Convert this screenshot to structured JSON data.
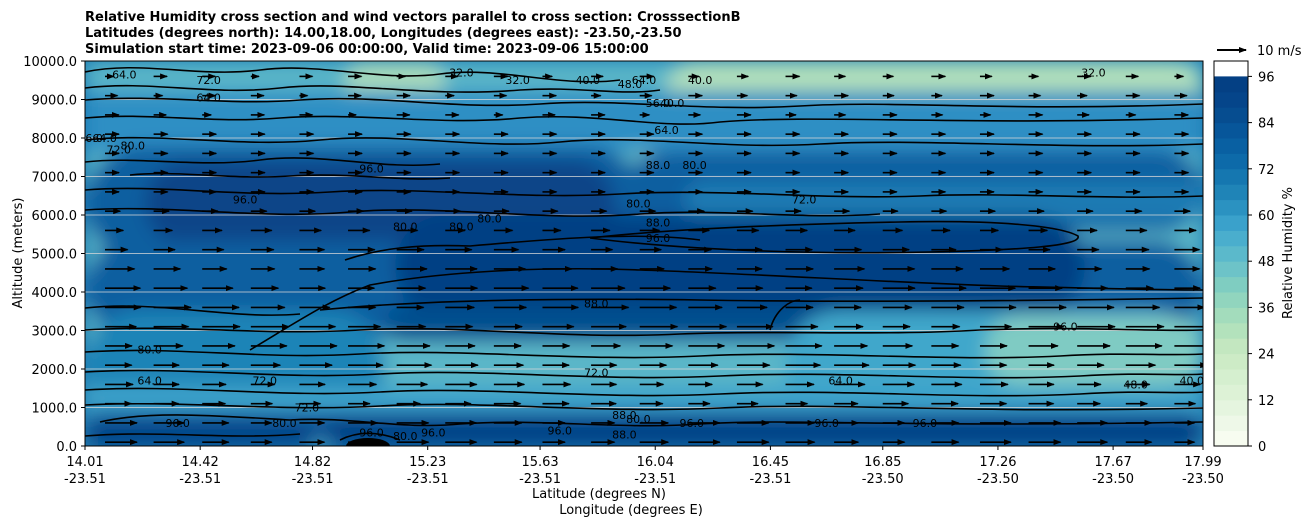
{
  "chart_data": {
    "type": "contour",
    "title_lines": [
      "Relative Humidity cross section and wind vectors parallel to cross section: CrosssectionB",
      "Latitudes (degrees north): 14.00,18.00, Longitudes (degrees east): -23.50,-23.50",
      "Simulation start time: 2023-09-06 00:00:00, Valid time: 2023-09-06 15:00:00"
    ],
    "ylabel": "Altitude (meters)",
    "xlabel_lat": "Latitude (degrees N)",
    "xlabel_lon": "Longitude (degrees E)",
    "ylim": [
      0,
      10000
    ],
    "y_ticks": [
      "0.0",
      "1000.0",
      "2000.0",
      "3000.0",
      "4000.0",
      "5000.0",
      "6000.0",
      "7000.0",
      "8000.0",
      "9000.0",
      "10000.0"
    ],
    "x_ticks_lat": [
      "14.01",
      "14.42",
      "14.82",
      "15.23",
      "15.63",
      "16.04",
      "16.45",
      "16.85",
      "17.26",
      "17.67",
      "17.99"
    ],
    "x_ticks_lon": [
      "-23.51",
      "-23.51",
      "-23.51",
      "-23.51",
      "-23.51",
      "-23.51",
      "-23.51",
      "-23.50",
      "-23.50",
      "-23.50",
      "-23.50"
    ],
    "colorbar": {
      "label": "Relative Humidity %",
      "min": 0,
      "max": 100,
      "step": 4,
      "ticks": [
        "0",
        "12",
        "24",
        "36",
        "48",
        "60",
        "72",
        "84",
        "96"
      ],
      "colors": [
        "#f7fcf0",
        "#eef8e8",
        "#e5f5df",
        "#ddf2d6",
        "#d5efcf",
        "#cdebc6",
        "#c3e7c0",
        "#b3e2bc",
        "#a3dcbc",
        "#91d5be",
        "#7fcdc1",
        "#6dc3c8",
        "#5bb9cb",
        "#4aaecd",
        "#3aa1cb",
        "#2b92c1",
        "#1f84b7",
        "#1577b0",
        "#0d6aa9",
        "#0960a2",
        "#07569a",
        "#064d90",
        "#05458a",
        "#044084"
      ]
    },
    "wind_key": "10 m/s",
    "contour_labels": [
      {
        "v": "64.0",
        "x": 14.15,
        "y": 9550
      },
      {
        "v": "72.0",
        "x": 14.45,
        "y": 9400
      },
      {
        "v": "64.0",
        "x": 14.45,
        "y": 8950
      },
      {
        "v": "32.0",
        "x": 15.35,
        "y": 9600
      },
      {
        "v": "32.0",
        "x": 15.55,
        "y": 9400
      },
      {
        "v": "40.0",
        "x": 15.8,
        "y": 9400
      },
      {
        "v": "48.0",
        "x": 15.95,
        "y": 9300
      },
      {
        "v": "64.0",
        "x": 16.0,
        "y": 9400
      },
      {
        "v": "56.0",
        "x": 16.05,
        "y": 8800
      },
      {
        "v": "40.0",
        "x": 16.1,
        "y": 8800
      },
      {
        "v": "64.0",
        "x": 16.08,
        "y": 8100
      },
      {
        "v": "40.0",
        "x": 16.2,
        "y": 9400
      },
      {
        "v": "32.0",
        "x": 17.6,
        "y": 9600
      },
      {
        "v": "96.0",
        "x": 14.03,
        "y": 7900
      },
      {
        "v": "64.0",
        "x": 14.08,
        "y": 7900
      },
      {
        "v": "72.0",
        "x": 14.13,
        "y": 7600
      },
      {
        "v": "80.0",
        "x": 14.18,
        "y": 7700
      },
      {
        "v": "96.0",
        "x": 14.58,
        "y": 6300
      },
      {
        "v": "96.0",
        "x": 15.03,
        "y": 7100
      },
      {
        "v": "80.0",
        "x": 15.15,
        "y": 5600
      },
      {
        "v": "80.0",
        "x": 15.35,
        "y": 5600
      },
      {
        "v": "80.0",
        "x": 15.45,
        "y": 5800
      },
      {
        "v": "80.0",
        "x": 15.98,
        "y": 6200
      },
      {
        "v": "88.0",
        "x": 16.05,
        "y": 7200
      },
      {
        "v": "80.0",
        "x": 16.18,
        "y": 7200
      },
      {
        "v": "72.0",
        "x": 16.57,
        "y": 6300
      },
      {
        "v": "88.0",
        "x": 16.05,
        "y": 5700
      },
      {
        "v": "96.0",
        "x": 16.05,
        "y": 5300
      },
      {
        "v": "88.0",
        "x": 15.83,
        "y": 3600
      },
      {
        "v": "72.0",
        "x": 15.83,
        "y": 1800
      },
      {
        "v": "80.0",
        "x": 14.24,
        "y": 2400
      },
      {
        "v": "64.0",
        "x": 14.24,
        "y": 1600
      },
      {
        "v": "72.0",
        "x": 14.65,
        "y": 1600
      },
      {
        "v": "80.0",
        "x": 14.72,
        "y": 500
      },
      {
        "v": "72.0",
        "x": 14.8,
        "y": 900
      },
      {
        "v": "96.0",
        "x": 14.34,
        "y": 500
      },
      {
        "v": "96.0",
        "x": 15.03,
        "y": 250
      },
      {
        "v": "80.0",
        "x": 15.15,
        "y": 150
      },
      {
        "v": "96.0",
        "x": 15.25,
        "y": 250
      },
      {
        "v": "96.0",
        "x": 15.7,
        "y": 300
      },
      {
        "v": "88.0",
        "x": 15.93,
        "y": 700
      },
      {
        "v": "80.0",
        "x": 15.98,
        "y": 600
      },
      {
        "v": "88.0",
        "x": 15.93,
        "y": 200
      },
      {
        "v": "96.0",
        "x": 16.17,
        "y": 500
      },
      {
        "v": "64.0",
        "x": 16.7,
        "y": 1600
      },
      {
        "v": "96.0",
        "x": 16.65,
        "y": 500
      },
      {
        "v": "96.0",
        "x": 17.0,
        "y": 500
      },
      {
        "v": "96.0",
        "x": 17.5,
        "y": 3000
      },
      {
        "v": "48.0",
        "x": 17.75,
        "y": 1500
      },
      {
        "v": "40.0",
        "x": 17.95,
        "y": 1600
      }
    ]
  }
}
